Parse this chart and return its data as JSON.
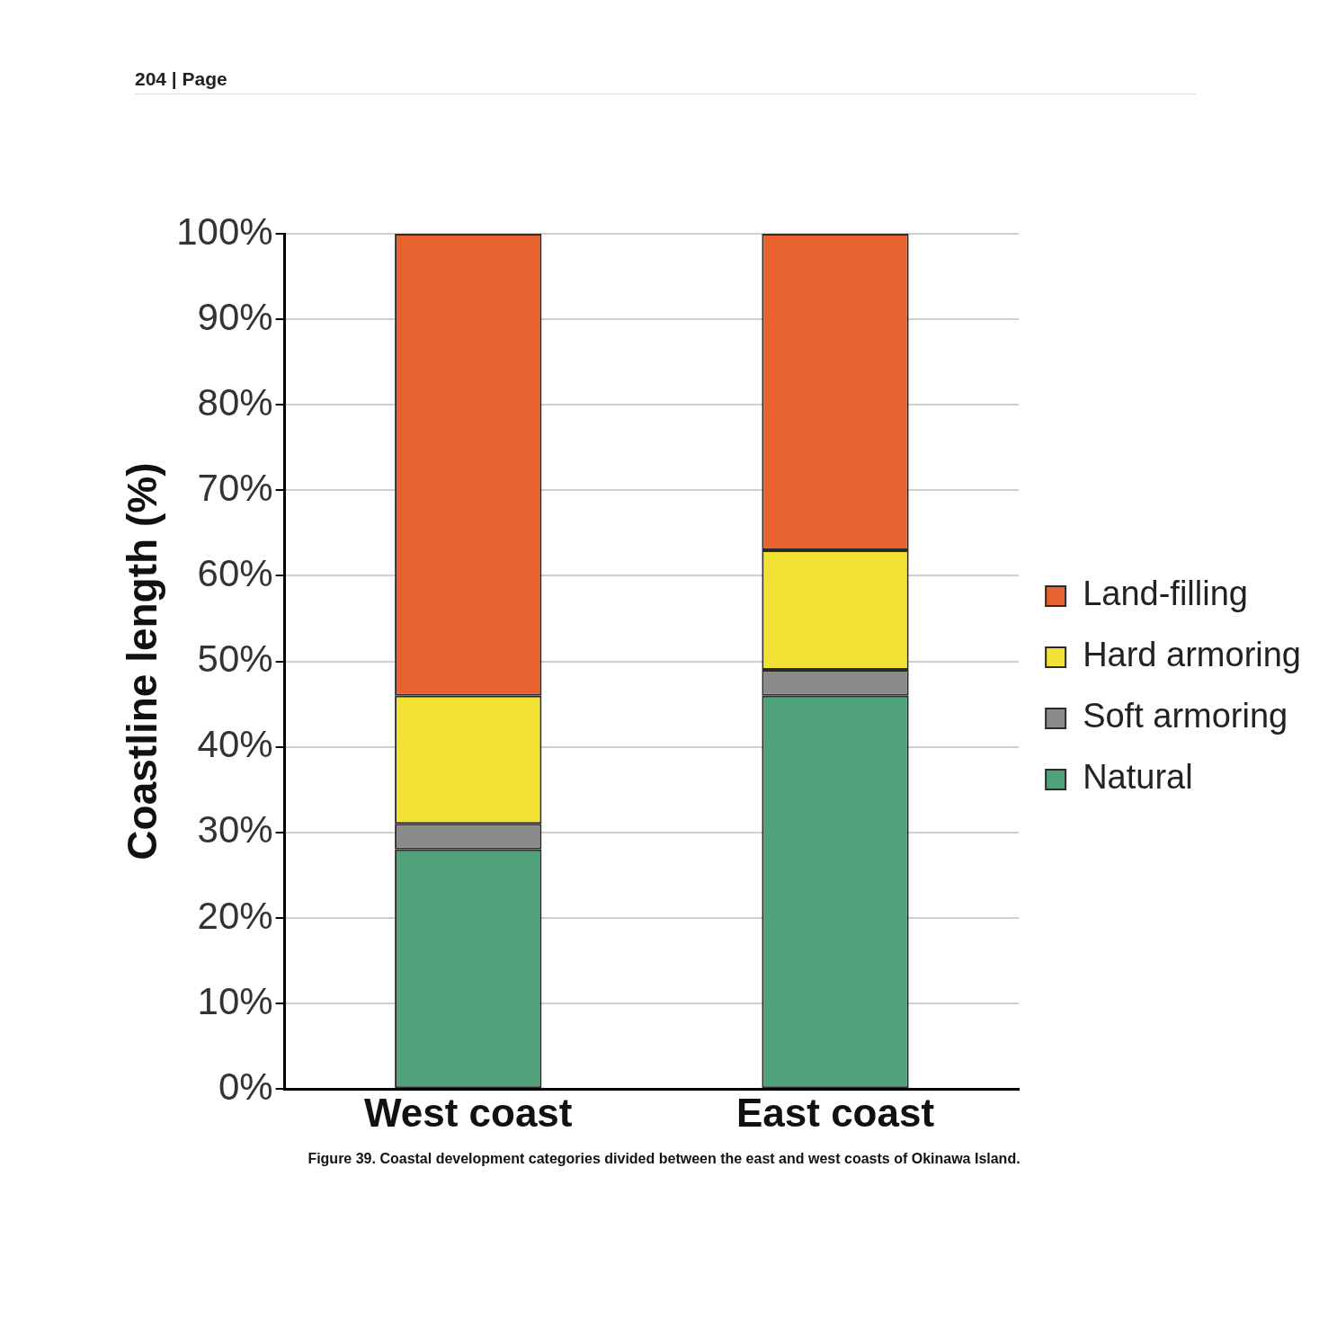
{
  "chart_data": {
    "type": "bar",
    "stacked": true,
    "categories": [
      "West coast",
      "East coast"
    ],
    "series": [
      {
        "name": "Natural",
        "color": "#4fa27a",
        "values": [
          28,
          46
        ]
      },
      {
        "name": "Soft armoring",
        "color": "#8a8a8a",
        "values": [
          3,
          3
        ]
      },
      {
        "name": "Hard armoring",
        "color": "#f2e235",
        "values": [
          15,
          14
        ]
      },
      {
        "name": "Land-filling",
        "color": "#e8622f",
        "values": [
          54,
          37
        ]
      }
    ],
    "ylabel": "Coastline length (%)",
    "ylim": [
      0,
      100
    ],
    "yticks": [
      {
        "value": 0,
        "label": "0%"
      },
      {
        "value": 10,
        "label": "10%"
      },
      {
        "value": 20,
        "label": "20%"
      },
      {
        "value": 30,
        "label": "30%"
      },
      {
        "value": 40,
        "label": "40%"
      },
      {
        "value": 50,
        "label": "50%"
      },
      {
        "value": 60,
        "label": "60%"
      },
      {
        "value": 70,
        "label": "70%"
      },
      {
        "value": 80,
        "label": "80%"
      },
      {
        "value": 90,
        "label": "90%"
      },
      {
        "value": 100,
        "label": "100%"
      }
    ],
    "grid": "y",
    "legend": "right",
    "annotations": [
      "204 | Page",
      "Figure 39. Coastal development categories divided between the east and west coasts of Okinawa Island."
    ]
  }
}
